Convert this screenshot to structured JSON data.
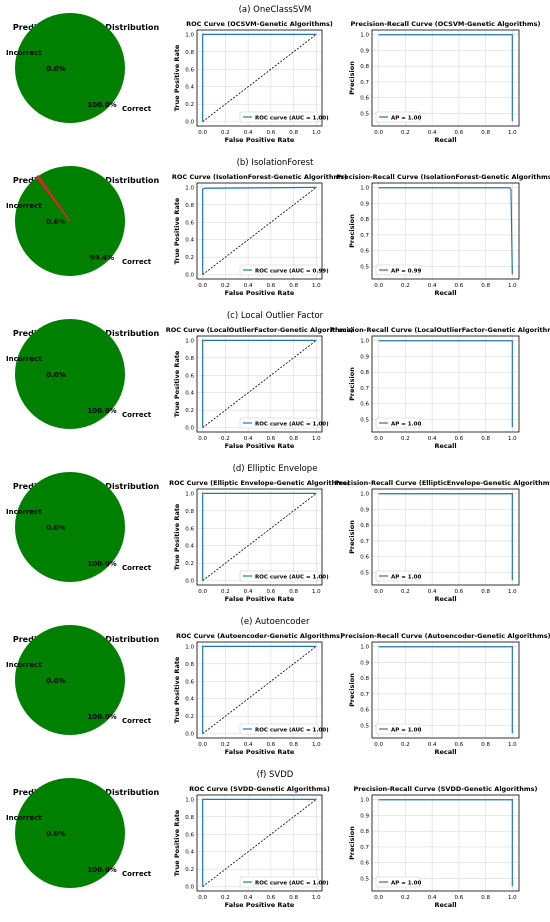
{
  "panels": [
    {
      "caption": "(a) OneClassSVM",
      "pie": {
        "title": "Prediction Accuracy Distribution",
        "labels": [
          "Incorrect",
          "Correct"
        ],
        "pct_labels": [
          "0.0%",
          "100.0%"
        ],
        "values": [
          0.0,
          100.0
        ],
        "colors": [
          "#d62728",
          "#008000"
        ]
      },
      "roc": {
        "title": "ROC Curve (OCSVM-Genetic Algorithms)",
        "xlabel": "False Positive Rate",
        "ylabel": "True Positive Rate",
        "legend": "ROC curve (AUC = 1.00)",
        "x": [
          0,
          0,
          1
        ],
        "y": [
          0,
          1,
          1
        ]
      },
      "pr": {
        "title": "Precision-Recall Curve (OCSVM-Genetic Algorithms)",
        "xlabel": "Recall",
        "ylabel": "Precision",
        "legend": "AP = 1.00",
        "x": [
          0,
          1,
          1
        ],
        "y": [
          1,
          1,
          0.45
        ]
      }
    },
    {
      "caption": "(b) IsolationForest",
      "pie": {
        "title": "Prediction Accuracy Distribution",
        "labels": [
          "Incorrect",
          "Correct"
        ],
        "pct_labels": [
          "0.6%",
          "99.4%"
        ],
        "values": [
          0.6,
          99.4
        ],
        "colors": [
          "#d62728",
          "#008000"
        ]
      },
      "roc": {
        "title": "ROC Curve (IsolationForest-Genetic Algorithms)",
        "xlabel": "False Positive Rate",
        "ylabel": "True Positive Rate",
        "legend": "ROC curve (AUC = 0.99)",
        "x": [
          0,
          0,
          0.02,
          1
        ],
        "y": [
          0,
          0.98,
          0.99,
          1
        ]
      },
      "pr": {
        "title": "Precision-Recall Curve (IsolationForest-Genetic Algorithms)",
        "xlabel": "Recall",
        "ylabel": "Precision",
        "legend": "AP = 0.99",
        "x": [
          0,
          0.98,
          0.99,
          1
        ],
        "y": [
          1,
          1,
          0.99,
          0.45
        ]
      }
    },
    {
      "caption": "(c) Local Outlier Factor",
      "pie": {
        "title": "Prediction Accuracy Distribution",
        "labels": [
          "Incorrect",
          "Correct"
        ],
        "pct_labels": [
          "0.0%",
          "100.0%"
        ],
        "values": [
          0.0,
          100.0
        ],
        "colors": [
          "#d62728",
          "#008000"
        ]
      },
      "roc": {
        "title": "ROC Curve (LocalOutlierFactor-Genetic Algorithms)",
        "xlabel": "False Positive Rate",
        "ylabel": "True Positive Rate",
        "legend": "ROC curve (AUC = 1.00)",
        "x": [
          0,
          0,
          1
        ],
        "y": [
          0,
          1,
          1
        ]
      },
      "pr": {
        "title": "Precision-Recall Curve (LocalOutlierFactor-Genetic Algorithms)",
        "xlabel": "Recall",
        "ylabel": "Precision",
        "legend": "AP = 1.00",
        "x": [
          0,
          1,
          1
        ],
        "y": [
          1,
          1,
          0.45
        ]
      }
    },
    {
      "caption": "(d) Elliptic Envelope",
      "pie": {
        "title": "Prediction Accuracy Distribution",
        "labels": [
          "Incorrect",
          "Correct"
        ],
        "pct_labels": [
          "0.0%",
          "100.0%"
        ],
        "values": [
          0.0,
          100.0
        ],
        "colors": [
          "#d62728",
          "#008000"
        ]
      },
      "roc": {
        "title": "ROC Curve (Elliptic Envelope-Genetic Algorithms)",
        "xlabel": "False Positive Rate",
        "ylabel": "True Positive Rate",
        "legend": "ROC curve (AUC = 1.00)",
        "x": [
          0,
          0,
          1
        ],
        "y": [
          0,
          1,
          1
        ]
      },
      "pr": {
        "title": "Precision-Recall Curve (EllipticEnvelope-Genetic Algorithms)",
        "xlabel": "Recall",
        "ylabel": "Precision",
        "legend": "AP = 1.00",
        "x": [
          0,
          1,
          1
        ],
        "y": [
          1,
          1,
          0.45
        ]
      }
    },
    {
      "caption": "(e) Autoencoder",
      "pie": {
        "title": "Prediction Accuracy Distribution",
        "labels": [
          "Incorrect",
          "Correct"
        ],
        "pct_labels": [
          "0.0%",
          "100.0%"
        ],
        "values": [
          0.0,
          100.0
        ],
        "colors": [
          "#d62728",
          "#008000"
        ]
      },
      "roc": {
        "title": "ROC Curve (Autoencoder-Genetic Algorithms)",
        "xlabel": "False Positive Rate",
        "ylabel": "True Positive Rate",
        "legend": "ROC curve (AUC = 1.00)",
        "x": [
          0,
          0,
          1
        ],
        "y": [
          0,
          1,
          1
        ]
      },
      "pr": {
        "title": "Precision-Recall Curve (Autoencoder-Genetic Algorithms)",
        "xlabel": "Recall",
        "ylabel": "Precision",
        "legend": "AP = 1.00",
        "x": [
          0,
          1,
          1
        ],
        "y": [
          1,
          1,
          0.45
        ]
      }
    },
    {
      "caption": "(f) SVDD",
      "pie": {
        "title": "Prediction Accuracy Distribution",
        "labels": [
          "Incorrect",
          "Correct"
        ],
        "pct_labels": [
          "0.0%",
          "100.0%"
        ],
        "values": [
          0.0,
          100.0
        ],
        "colors": [
          "#d62728",
          "#008000"
        ]
      },
      "roc": {
        "title": "ROC Curve (SVDD-Genetic Algorithms)",
        "xlabel": "False Positive Rate",
        "ylabel": "True Positive Rate",
        "legend": "ROC curve (AUC = 1.00)",
        "x": [
          0,
          0,
          1
        ],
        "y": [
          0,
          1,
          1
        ]
      },
      "pr": {
        "title": "Precision-Recall Curve (SVDD-Genetic Algorithms)",
        "xlabel": "Recall",
        "ylabel": "Precision",
        "legend": "AP = 1.00",
        "x": [
          0,
          1,
          1
        ],
        "y": [
          1,
          1,
          0.45
        ]
      }
    }
  ],
  "chart_data": [
    {
      "type": "pie",
      "title": "Prediction Accuracy Distribution",
      "categories": [
        "Incorrect",
        "Correct"
      ],
      "values": [
        0.0,
        100.0
      ]
    },
    {
      "type": "line",
      "title": "ROC Curve (OCSVM-Genetic Algorithms)",
      "xlabel": "False Positive Rate",
      "ylabel": "True Positive Rate",
      "xlim": [
        0,
        1
      ],
      "ylim": [
        0,
        1
      ],
      "series": [
        {
          "name": "ROC curve (AUC = 1.00)",
          "x": [
            0,
            0,
            1
          ],
          "y": [
            0,
            1,
            1
          ]
        }
      ]
    },
    {
      "type": "line",
      "title": "Precision-Recall Curve (OCSVM-Genetic Algorithms)",
      "xlabel": "Recall",
      "ylabel": "Precision",
      "xlim": [
        0,
        1
      ],
      "ylim": [
        0.45,
        1.0
      ],
      "series": [
        {
          "name": "AP = 1.00",
          "x": [
            0,
            1,
            1
          ],
          "y": [
            1,
            1,
            0.45
          ]
        }
      ]
    },
    {
      "type": "pie",
      "title": "Prediction Accuracy Distribution",
      "categories": [
        "Incorrect",
        "Correct"
      ],
      "values": [
        0.6,
        99.4
      ]
    },
    {
      "type": "line",
      "title": "ROC Curve (IsolationForest-Genetic Algorithms)",
      "xlabel": "False Positive Rate",
      "ylabel": "True Positive Rate",
      "xlim": [
        0,
        1
      ],
      "ylim": [
        0,
        1
      ],
      "series": [
        {
          "name": "ROC curve (AUC = 0.99)",
          "x": [
            0,
            0,
            0.02,
            1
          ],
          "y": [
            0,
            0.98,
            0.99,
            1
          ]
        }
      ]
    },
    {
      "type": "line",
      "title": "Precision-Recall Curve (IsolationForest-Genetic Algorithms)",
      "xlabel": "Recall",
      "ylabel": "Precision",
      "xlim": [
        0,
        1
      ],
      "ylim": [
        0.45,
        1.0
      ],
      "series": [
        {
          "name": "AP = 0.99",
          "x": [
            0,
            0.98,
            0.99,
            1
          ],
          "y": [
            1,
            1,
            0.99,
            0.45
          ]
        }
      ]
    },
    {
      "type": "pie",
      "title": "Prediction Accuracy Distribution",
      "categories": [
        "Incorrect",
        "Correct"
      ],
      "values": [
        0.0,
        100.0
      ]
    },
    {
      "type": "line",
      "title": "ROC Curve (LocalOutlierFactor-Genetic Algorithms)",
      "xlabel": "False Positive Rate",
      "ylabel": "True Positive Rate",
      "xlim": [
        0,
        1
      ],
      "ylim": [
        0,
        1
      ],
      "series": [
        {
          "name": "ROC curve (AUC = 1.00)",
          "x": [
            0,
            0,
            1
          ],
          "y": [
            0,
            1,
            1
          ]
        }
      ]
    },
    {
      "type": "line",
      "title": "Precision-Recall Curve (LocalOutlierFactor-Genetic Algorithms)",
      "xlabel": "Recall",
      "ylabel": "Precision",
      "xlim": [
        0,
        1
      ],
      "ylim": [
        0.45,
        1.0
      ],
      "series": [
        {
          "name": "AP = 1.00",
          "x": [
            0,
            1,
            1
          ],
          "y": [
            1,
            1,
            0.45
          ]
        }
      ]
    },
    {
      "type": "pie",
      "title": "Prediction Accuracy Distribution",
      "categories": [
        "Incorrect",
        "Correct"
      ],
      "values": [
        0.0,
        100.0
      ]
    },
    {
      "type": "line",
      "title": "ROC Curve (Elliptic Envelope-Genetic Algorithms)",
      "xlabel": "False Positive Rate",
      "ylabel": "True Positive Rate",
      "xlim": [
        0,
        1
      ],
      "ylim": [
        0,
        1
      ],
      "series": [
        {
          "name": "ROC curve (AUC = 1.00)",
          "x": [
            0,
            0,
            1
          ],
          "y": [
            0,
            1,
            1
          ]
        }
      ]
    },
    {
      "type": "line",
      "title": "Precision-Recall Curve (EllipticEnvelope-Genetic Algorithms)",
      "xlabel": "Recall",
      "ylabel": "Precision",
      "xlim": [
        0,
        1
      ],
      "ylim": [
        0.45,
        1.0
      ],
      "series": [
        {
          "name": "AP = 1.00",
          "x": [
            0,
            1,
            1
          ],
          "y": [
            1,
            1,
            0.45
          ]
        }
      ]
    },
    {
      "type": "pie",
      "title": "Prediction Accuracy Distribution",
      "categories": [
        "Incorrect",
        "Correct"
      ],
      "values": [
        0.0,
        100.0
      ]
    },
    {
      "type": "line",
      "title": "ROC Curve (Autoencoder-Genetic Algorithms)",
      "xlabel": "False Positive Rate",
      "ylabel": "True Positive Rate",
      "xlim": [
        0,
        1
      ],
      "ylim": [
        0,
        1
      ],
      "series": [
        {
          "name": "ROC curve (AUC = 1.00)",
          "x": [
            0,
            0,
            1
          ],
          "y": [
            0,
            1,
            1
          ]
        }
      ]
    },
    {
      "type": "line",
      "title": "Precision-Recall Curve (Autoencoder-Genetic Algorithms)",
      "xlabel": "Recall",
      "ylabel": "Precision",
      "xlim": [
        0,
        1
      ],
      "ylim": [
        0.45,
        1.0
      ],
      "series": [
        {
          "name": "AP = 1.00",
          "x": [
            0,
            1,
            1
          ],
          "y": [
            1,
            1,
            0.45
          ]
        }
      ]
    },
    {
      "type": "pie",
      "title": "Prediction Accuracy Distribution",
      "categories": [
        "Incorrect",
        "Correct"
      ],
      "values": [
        0.0,
        100.0
      ]
    },
    {
      "type": "line",
      "title": "ROC Curve (SVDD-Genetic Algorithms)",
      "xlabel": "False Positive Rate",
      "ylabel": "True Positive Rate",
      "xlim": [
        0,
        1
      ],
      "ylim": [
        0,
        1
      ],
      "series": [
        {
          "name": "ROC curve (AUC = 1.00)",
          "x": [
            0,
            0,
            1
          ],
          "y": [
            0,
            1,
            1
          ]
        }
      ]
    },
    {
      "type": "line",
      "title": "Precision-Recall Curve (SVDD-Genetic Algorithms)",
      "xlabel": "Recall",
      "ylabel": "Precision",
      "xlim": [
        0,
        1
      ],
      "ylim": [
        0.45,
        1.0
      ],
      "series": [
        {
          "name": "AP = 1.00",
          "x": [
            0,
            1,
            1
          ],
          "y": [
            1,
            1,
            0.45
          ]
        }
      ]
    }
  ],
  "style": {
    "roc_color": "#1f77b4",
    "diag_color": "#000000",
    "grid_color": "#d9d9d9"
  }
}
